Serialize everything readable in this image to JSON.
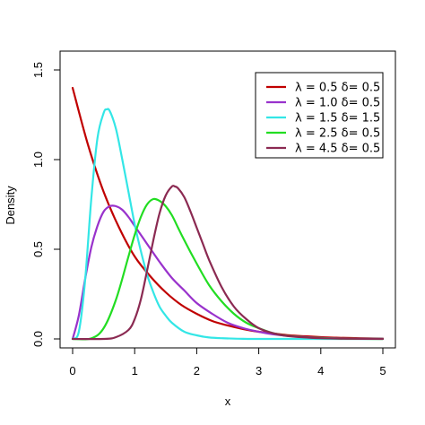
{
  "chart_data": {
    "type": "line",
    "title": "",
    "xlabel": "x",
    "ylabel": "Density",
    "xlim": [
      0,
      5
    ],
    "ylim": [
      0,
      1.5
    ],
    "xticks": [
      "0",
      "1",
      "2",
      "3",
      "4",
      "5"
    ],
    "yticks": [
      "0.0",
      "0.5",
      "1.0",
      "1.5"
    ],
    "grid": false,
    "legend_position": "top-right",
    "series": [
      {
        "name": "λ = 0.5 δ= 0.5",
        "color": "#c00000",
        "x": [
          0,
          0.25,
          0.5,
          0.75,
          1.0,
          1.25,
          1.5,
          1.75,
          2.0,
          2.25,
          2.5,
          2.75,
          3.0,
          3.25,
          3.5,
          3.75,
          4.0,
          4.25,
          4.5,
          4.75,
          5.0
        ],
        "y": [
          1.4,
          1.08,
          0.82,
          0.62,
          0.46,
          0.35,
          0.26,
          0.19,
          0.14,
          0.1,
          0.075,
          0.055,
          0.04,
          0.03,
          0.02,
          0.015,
          0.01,
          0.007,
          0.005,
          0.003,
          0.002
        ]
      },
      {
        "name": "λ = 1.0 δ= 0.5",
        "color": "#9932cc",
        "x": [
          0,
          0.1,
          0.2,
          0.3,
          0.4,
          0.5,
          0.6,
          0.7,
          0.8,
          0.9,
          1.0,
          1.2,
          1.4,
          1.6,
          1.8,
          2.0,
          2.25,
          2.5,
          2.75,
          3.0,
          3.25,
          3.5,
          4.0,
          4.5,
          5.0
        ],
        "y": [
          0.0,
          0.13,
          0.33,
          0.51,
          0.63,
          0.71,
          0.74,
          0.74,
          0.72,
          0.68,
          0.63,
          0.53,
          0.43,
          0.34,
          0.27,
          0.2,
          0.14,
          0.09,
          0.06,
          0.04,
          0.025,
          0.016,
          0.006,
          0.002,
          0.001
        ]
      },
      {
        "name": "λ = 1.5 δ= 1.5",
        "color": "#33e6e6",
        "x": [
          0,
          0.1,
          0.2,
          0.3,
          0.4,
          0.5,
          0.55,
          0.6,
          0.7,
          0.8,
          0.9,
          1.0,
          1.1,
          1.2,
          1.3,
          1.4,
          1.5,
          1.6,
          1.8,
          2.0,
          2.2,
          2.4,
          2.7,
          3.0,
          3.5,
          4.0,
          5.0
        ],
        "y": [
          0.0,
          0.04,
          0.32,
          0.78,
          1.12,
          1.26,
          1.28,
          1.27,
          1.17,
          1.0,
          0.82,
          0.64,
          0.49,
          0.36,
          0.26,
          0.18,
          0.13,
          0.09,
          0.04,
          0.02,
          0.008,
          0.004,
          0.001,
          0.0,
          0.0,
          0.0,
          0.0
        ]
      },
      {
        "name": "λ = 2.5 δ= 0.5",
        "color": "#22dd22",
        "x": [
          0,
          0.3,
          0.5,
          0.7,
          0.9,
          1.0,
          1.1,
          1.2,
          1.3,
          1.4,
          1.5,
          1.6,
          1.7,
          1.8,
          2.0,
          2.2,
          2.4,
          2.6,
          2.8,
          3.0,
          3.25,
          3.5,
          4.0,
          4.5,
          5.0
        ],
        "y": [
          0.0,
          0.003,
          0.06,
          0.22,
          0.46,
          0.58,
          0.68,
          0.75,
          0.78,
          0.77,
          0.74,
          0.69,
          0.62,
          0.55,
          0.42,
          0.3,
          0.21,
          0.14,
          0.09,
          0.06,
          0.03,
          0.016,
          0.005,
          0.001,
          0.0
        ]
      },
      {
        "name": "λ = 4.5 δ= 0.5",
        "color": "#8b2a52",
        "x": [
          0,
          0.5,
          0.7,
          0.9,
          1.0,
          1.1,
          1.2,
          1.3,
          1.4,
          1.5,
          1.6,
          1.65,
          1.7,
          1.8,
          1.9,
          2.0,
          2.1,
          2.2,
          2.4,
          2.6,
          2.8,
          3.0,
          3.25,
          3.5,
          4.0,
          4.5,
          5.0
        ],
        "y": [
          0.0,
          0.0,
          0.01,
          0.05,
          0.11,
          0.22,
          0.38,
          0.55,
          0.7,
          0.8,
          0.85,
          0.85,
          0.84,
          0.79,
          0.71,
          0.62,
          0.53,
          0.44,
          0.29,
          0.18,
          0.11,
          0.06,
          0.03,
          0.015,
          0.004,
          0.001,
          0.0
        ]
      }
    ]
  }
}
